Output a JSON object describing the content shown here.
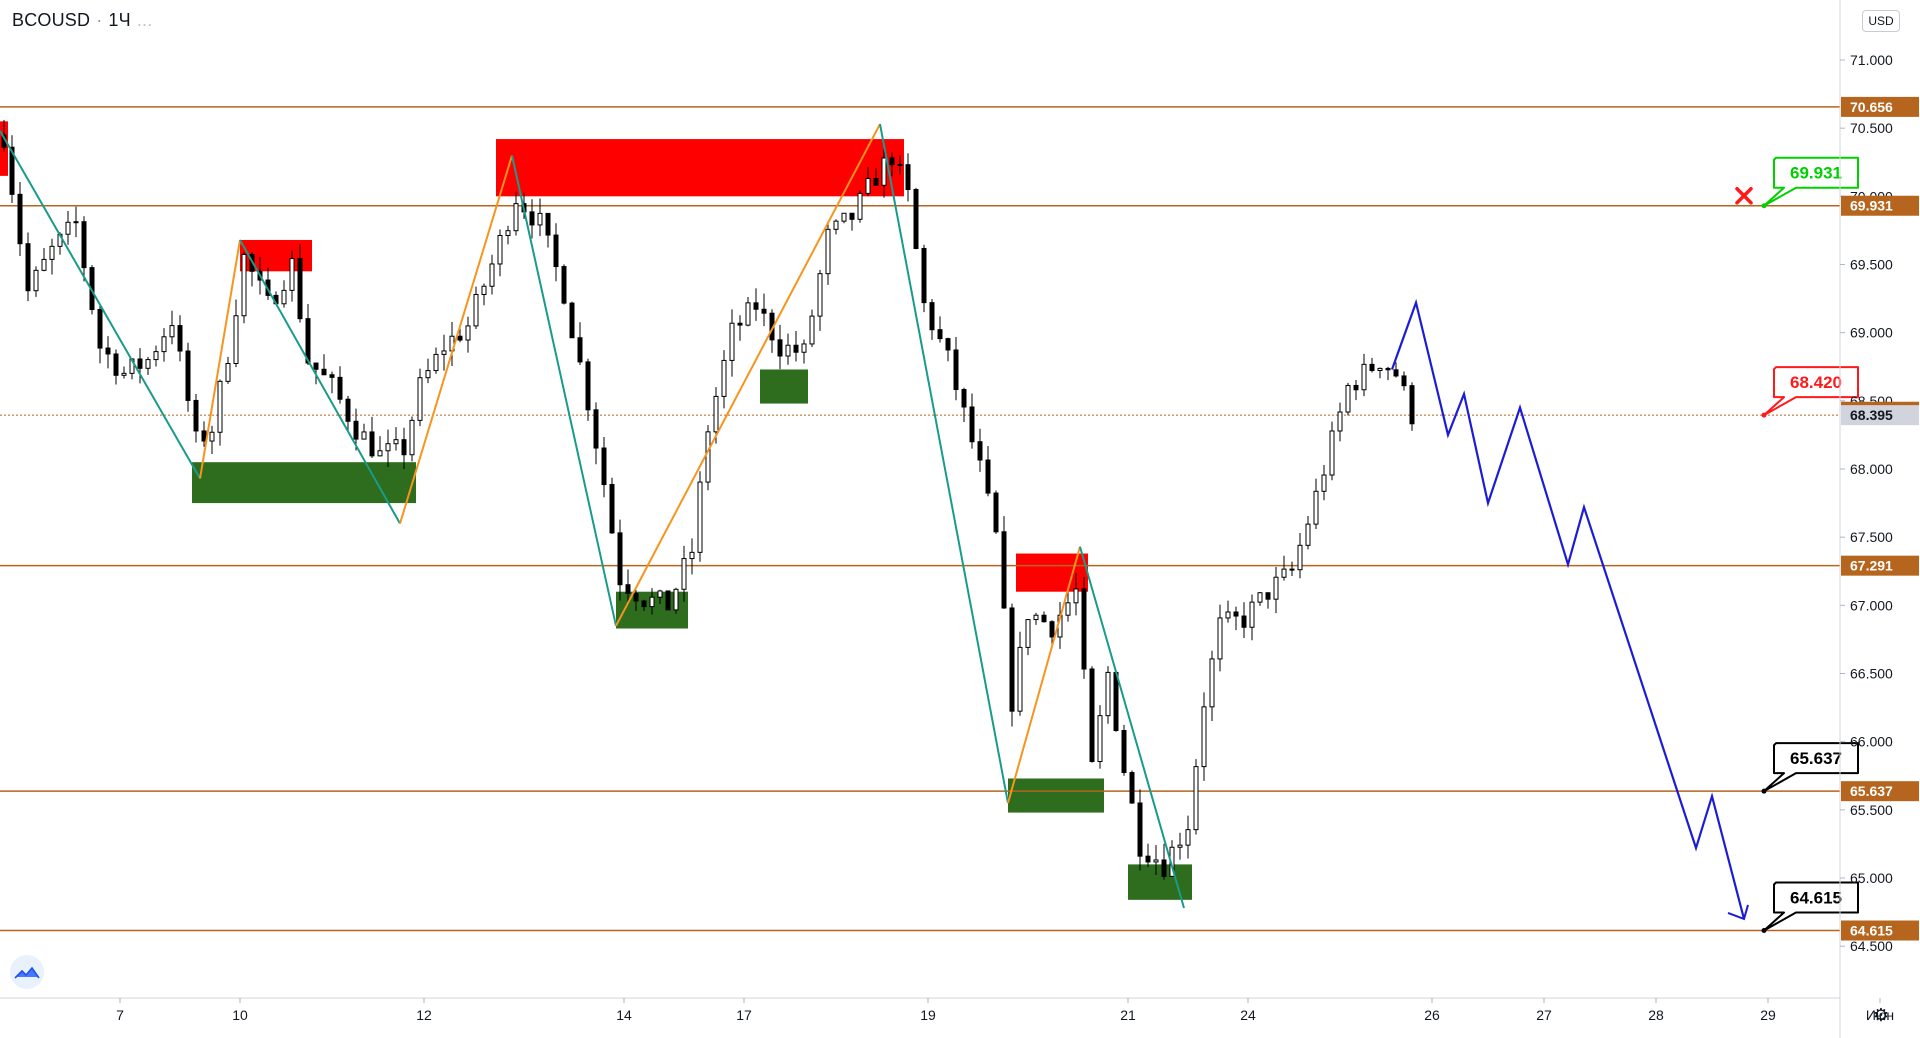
{
  "header": {
    "symbol": "BCOUSD",
    "interval": "1Ч",
    "menu_dots": "..."
  },
  "currency_button": "USD",
  "colors": {
    "level_line": "#b5651d",
    "supply_zone": "#ff0000",
    "demand_zone": "#2e6d1d",
    "down_leg": "#199b8b",
    "up_leg": "#f7941d",
    "projection": "#1c1cd8",
    "candle": "#000000",
    "green_label": "#00d000",
    "red_label": "#ff1a1a"
  },
  "chart_data": {
    "type": "candlestick",
    "symbol": "BCOUSD",
    "timeframe": "1Ч",
    "y_axis": {
      "range": [
        64.12,
        71.44
      ],
      "ticks": [
        {
          "v": 71.0,
          "label": "71.000"
        },
        {
          "v": 70.5,
          "label": "70.500"
        },
        {
          "v": 70.0,
          "label": "70.000"
        },
        {
          "v": 69.5,
          "label": "69.500"
        },
        {
          "v": 69.0,
          "label": "69.000"
        },
        {
          "v": 68.5,
          "label": "68.500"
        },
        {
          "v": 68.0,
          "label": "68.000"
        },
        {
          "v": 67.5,
          "label": "67.500"
        },
        {
          "v": 67.0,
          "label": "67.000"
        },
        {
          "v": 66.5,
          "label": "66.500"
        },
        {
          "v": 66.0,
          "label": "66.000"
        },
        {
          "v": 65.5,
          "label": "65.500"
        },
        {
          "v": 65.0,
          "label": "65.000"
        },
        {
          "v": 64.5,
          "label": "64.500"
        }
      ]
    },
    "x_axis": {
      "ticks": [
        {
          "t": 15,
          "label": "7"
        },
        {
          "t": 30,
          "label": "10"
        },
        {
          "t": 53,
          "label": "12"
        },
        {
          "t": 78,
          "label": "14"
        },
        {
          "t": 93,
          "label": "17"
        },
        {
          "t": 116,
          "label": "19"
        },
        {
          "t": 141,
          "label": "21"
        },
        {
          "t": 156,
          "label": "24"
        },
        {
          "t": 179,
          "label": "26"
        },
        {
          "t": 193,
          "label": "27"
        },
        {
          "t": 207,
          "label": "28"
        },
        {
          "t": 221,
          "label": "29"
        },
        {
          "t": 235,
          "label": "Июн"
        }
      ]
    },
    "levels": [
      {
        "value": 70.656,
        "label": "70.656"
      },
      {
        "value": 69.931,
        "label": "69.931"
      },
      {
        "value": 67.291,
        "label": "67.291"
      },
      {
        "value": 65.637,
        "label": "65.637"
      },
      {
        "value": 64.615,
        "label": "64.615"
      }
    ],
    "last_price_level": {
      "value": 68.395,
      "label": "68.395",
      "dotted_line": true
    },
    "extra_axis_label": {
      "value": 68.42,
      "label": "68.420"
    },
    "supply_zones": [
      {
        "t0": -1,
        "t1": 1,
        "y0": 70.15,
        "y1": 70.55
      },
      {
        "t0": 30,
        "t1": 39,
        "y0": 69.45,
        "y1": 69.68
      },
      {
        "t0": 62,
        "t1": 113,
        "y0": 70.0,
        "y1": 70.42
      },
      {
        "t0": 127,
        "t1": 136,
        "y0": 67.1,
        "y1": 67.38
      }
    ],
    "demand_zones": [
      {
        "t0": 24,
        "t1": 52,
        "y0": 67.75,
        "y1": 68.05
      },
      {
        "t0": 77,
        "t1": 86,
        "y0": 66.83,
        "y1": 67.1
      },
      {
        "t0": 95,
        "t1": 101,
        "y0": 68.48,
        "y1": 68.73
      },
      {
        "t0": 126,
        "t1": 138,
        "y0": 65.48,
        "y1": 65.73
      },
      {
        "t0": 141,
        "t1": 149,
        "y0": 64.84,
        "y1": 65.1
      }
    ],
    "zigzag": [
      {
        "t": 0,
        "v": 70.48,
        "leg": "down"
      },
      {
        "t": 25,
        "v": 67.93
      },
      {
        "t": 30,
        "v": 69.68,
        "leg": "up"
      },
      {
        "t": 50,
        "v": 67.6
      },
      {
        "t": 64,
        "v": 70.3
      },
      {
        "t": 77,
        "v": 66.85
      },
      {
        "t": 110,
        "v": 70.53
      },
      {
        "t": 126,
        "v": 65.55
      },
      {
        "t": 135,
        "v": 67.43
      },
      {
        "t": 148,
        "v": 64.78
      }
    ],
    "projection": [
      {
        "t": 174,
        "v": 68.73
      },
      {
        "t": 177,
        "v": 69.22
      },
      {
        "t": 181,
        "v": 68.25
      },
      {
        "t": 183,
        "v": 68.55
      },
      {
        "t": 186,
        "v": 67.75
      },
      {
        "t": 190,
        "v": 68.45
      },
      {
        "t": 196,
        "v": 67.3
      },
      {
        "t": 198,
        "v": 67.72
      },
      {
        "t": 212,
        "v": 65.22
      },
      {
        "t": 214,
        "v": 65.6
      },
      {
        "t": 218,
        "v": 64.7
      }
    ],
    "projection_end_arrow": true,
    "callouts": [
      {
        "text": "69.931",
        "anchor_t": 220.5,
        "anchor_v": 69.931,
        "style": "green",
        "cancelled_marker": true
      },
      {
        "text": "68.420",
        "anchor_t": 220.5,
        "anchor_v": 68.395,
        "style": "red"
      },
      {
        "text": "65.637",
        "anchor_t": 220.5,
        "anchor_v": 65.637,
        "style": "black"
      },
      {
        "text": "64.615",
        "anchor_t": 220.5,
        "anchor_v": 64.615,
        "style": "black"
      }
    ],
    "candle_anchors": [
      {
        "t": 0,
        "v": 70.45
      },
      {
        "t": 3,
        "v": 69.3
      },
      {
        "t": 6,
        "v": 69.6
      },
      {
        "t": 9,
        "v": 69.8
      },
      {
        "t": 12,
        "v": 68.9
      },
      {
        "t": 15,
        "v": 68.7
      },
      {
        "t": 18,
        "v": 68.8
      },
      {
        "t": 21,
        "v": 69.1
      },
      {
        "t": 24,
        "v": 68.2
      },
      {
        "t": 26,
        "v": 68.3
      },
      {
        "t": 28,
        "v": 68.85
      },
      {
        "t": 30,
        "v": 69.55
      },
      {
        "t": 33,
        "v": 69.2
      },
      {
        "t": 36,
        "v": 69.5
      },
      {
        "t": 38,
        "v": 68.8
      },
      {
        "t": 41,
        "v": 68.6
      },
      {
        "t": 44,
        "v": 68.3
      },
      {
        "t": 47,
        "v": 68.1
      },
      {
        "t": 50,
        "v": 68.15
      },
      {
        "t": 52,
        "v": 68.6
      },
      {
        "t": 55,
        "v": 68.9
      },
      {
        "t": 58,
        "v": 69.05
      },
      {
        "t": 61,
        "v": 69.5
      },
      {
        "t": 64,
        "v": 70.0
      },
      {
        "t": 67,
        "v": 69.8
      },
      {
        "t": 70,
        "v": 69.3
      },
      {
        "t": 73,
        "v": 68.5
      },
      {
        "t": 75,
        "v": 67.9
      },
      {
        "t": 77,
        "v": 67.2
      },
      {
        "t": 80,
        "v": 67.05
      },
      {
        "t": 83,
        "v": 67.0
      },
      {
        "t": 86,
        "v": 67.4
      },
      {
        "t": 88,
        "v": 68.3
      },
      {
        "t": 91,
        "v": 69.0
      },
      {
        "t": 94,
        "v": 69.2
      },
      {
        "t": 97,
        "v": 68.9
      },
      {
        "t": 100,
        "v": 68.85
      },
      {
        "t": 103,
        "v": 69.7
      },
      {
        "t": 106,
        "v": 69.85
      },
      {
        "t": 109,
        "v": 70.15
      },
      {
        "t": 111,
        "v": 70.3
      },
      {
        "t": 113,
        "v": 70.0
      },
      {
        "t": 115,
        "v": 69.2
      },
      {
        "t": 118,
        "v": 68.8
      },
      {
        "t": 120,
        "v": 68.4
      },
      {
        "t": 122,
        "v": 68.0
      },
      {
        "t": 124,
        "v": 67.5
      },
      {
        "t": 126,
        "v": 66.3
      },
      {
        "t": 128,
        "v": 66.95
      },
      {
        "t": 131,
        "v": 66.85
      },
      {
        "t": 134,
        "v": 67.1
      },
      {
        "t": 136,
        "v": 65.8
      },
      {
        "t": 138,
        "v": 66.5
      },
      {
        "t": 140,
        "v": 65.8
      },
      {
        "t": 142,
        "v": 65.25
      },
      {
        "t": 145,
        "v": 65.1
      },
      {
        "t": 148,
        "v": 65.4
      },
      {
        "t": 150,
        "v": 66.3
      },
      {
        "t": 152,
        "v": 66.85
      },
      {
        "t": 155,
        "v": 66.9
      },
      {
        "t": 158,
        "v": 67.1
      },
      {
        "t": 161,
        "v": 67.25
      },
      {
        "t": 164,
        "v": 67.8
      },
      {
        "t": 166,
        "v": 68.2
      },
      {
        "t": 168,
        "v": 68.6
      },
      {
        "t": 170,
        "v": 68.7
      },
      {
        "t": 172,
        "v": 68.8
      },
      {
        "t": 174,
        "v": 68.7
      },
      {
        "t": 176,
        "v": 68.4
      }
    ]
  }
}
